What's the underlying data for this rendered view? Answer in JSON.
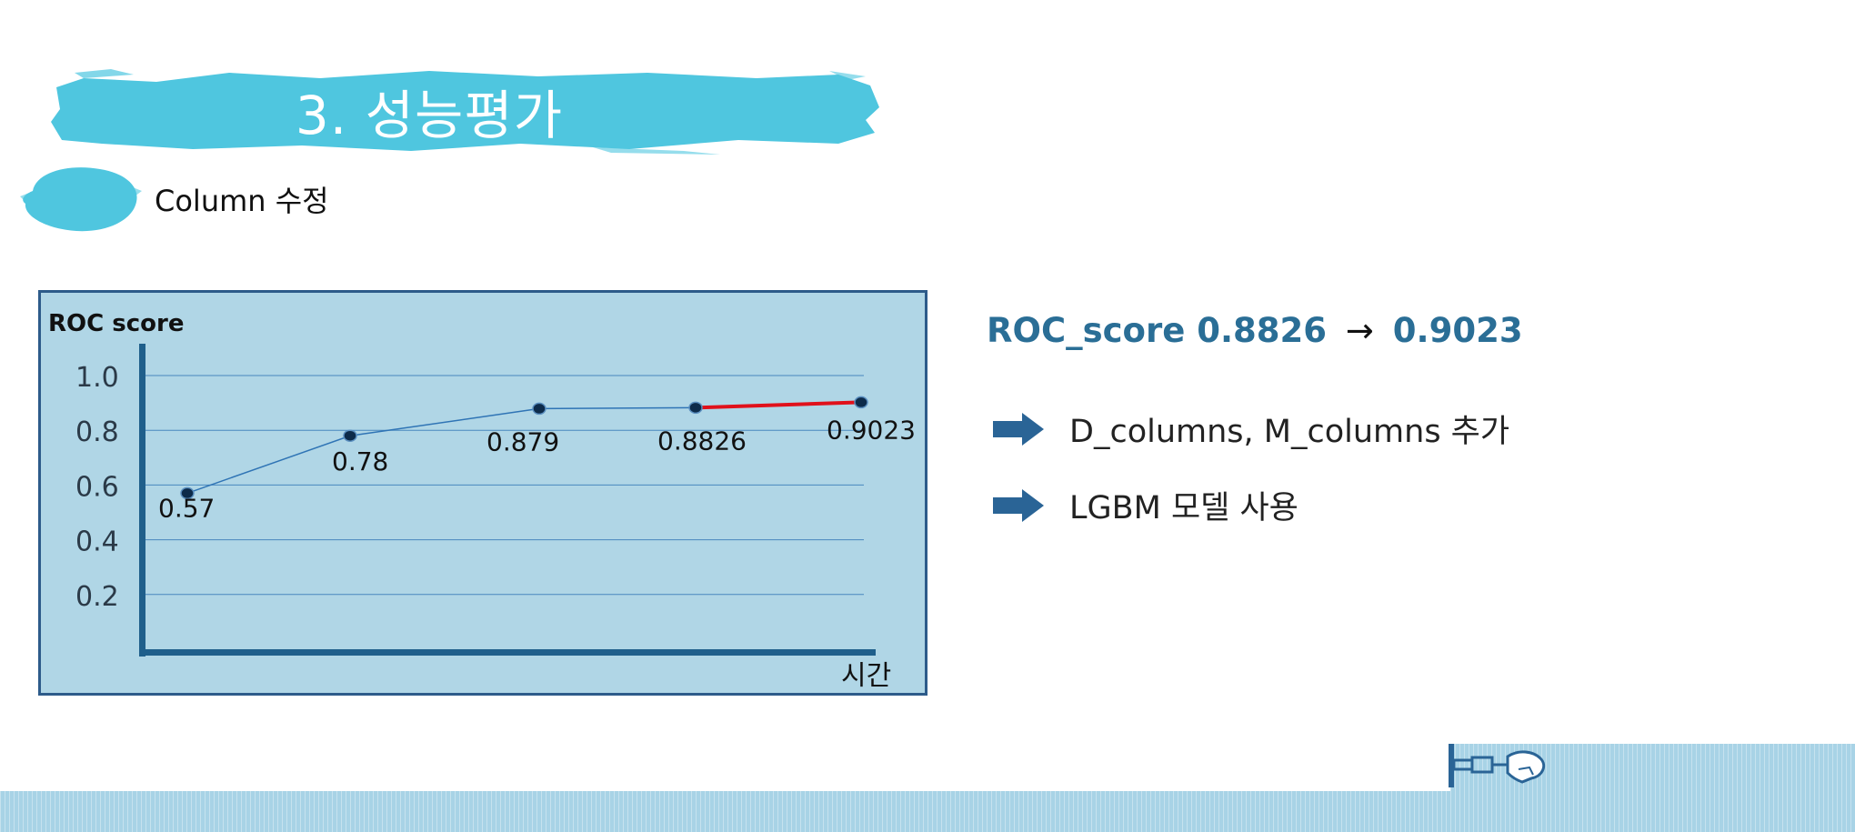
{
  "slide": {
    "title": "3. 성능평가",
    "subtitle": "Column 수정"
  },
  "colors": {
    "accent": "#4fc6df",
    "chart_bg": "#b0d6e6",
    "axis": "#1f5f8b",
    "line": "#2f74b5",
    "highlight": "#e0101a",
    "headline": "#2a6e96",
    "arrow": "#2a6496",
    "strip": "#a8d3e6"
  },
  "chart_data": {
    "type": "line",
    "ylabel": "ROC score",
    "xlabel": "시간",
    "yticks": [
      "1.0",
      "0.8",
      "0.6",
      "0.4",
      "0.2"
    ],
    "ylim": [
      0,
      1.0
    ],
    "grid": true,
    "points": [
      {
        "x": 1,
        "y": 0.57,
        "label": "0.57"
      },
      {
        "x": 2,
        "y": 0.78,
        "label": "0.78"
      },
      {
        "x": 3,
        "y": 0.879,
        "label": "0.879"
      },
      {
        "x": 4,
        "y": 0.8826,
        "label": "0.8826"
      },
      {
        "x": 5,
        "y": 0.9023,
        "label": "0.9023"
      }
    ],
    "highlight_segment": [
      4,
      5
    ]
  },
  "summary": {
    "label": "ROC_score",
    "before": "0.8826",
    "arrow": "→",
    "after": "0.9023"
  },
  "bullets": [
    {
      "text": "D_columns, M_columns 추가",
      "icon": "arrow-right-icon"
    },
    {
      "text": "LGBM 모델 사용",
      "icon": "arrow-right-icon"
    }
  ],
  "decoration": {
    "icon": "mechanical-hand-icon"
  }
}
